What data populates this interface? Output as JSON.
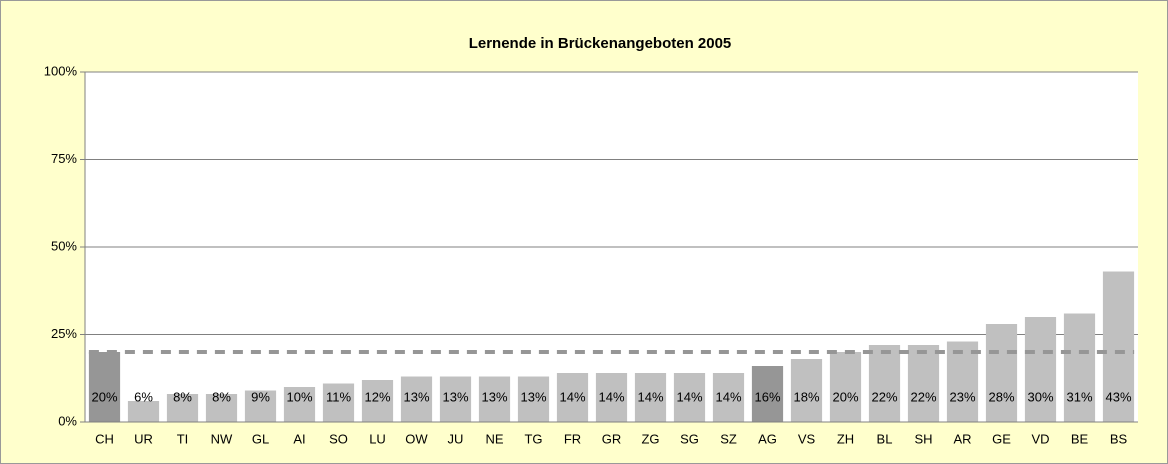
{
  "chart_data": {
    "type": "bar",
    "title": "Lernende in Brückenangeboten 2005",
    "categories": [
      "CH",
      "UR",
      "TI",
      "NW",
      "GL",
      "AI",
      "SO",
      "LU",
      "OW",
      "JU",
      "NE",
      "TG",
      "FR",
      "GR",
      "ZG",
      "SG",
      "SZ",
      "AG",
      "VS",
      "ZH",
      "BL",
      "SH",
      "AR",
      "GE",
      "VD",
      "BE",
      "BS"
    ],
    "values": [
      20,
      6,
      8,
      8,
      9,
      10,
      11,
      12,
      13,
      13,
      13,
      13,
      14,
      14,
      14,
      14,
      14,
      16,
      18,
      20,
      22,
      22,
      23,
      28,
      30,
      31,
      43
    ],
    "value_labels": [
      "20%",
      "6%",
      "8%",
      "8%",
      "9%",
      "10%",
      "11%",
      "12%",
      "13%",
      "13%",
      "13%",
      "13%",
      "14%",
      "14%",
      "14%",
      "14%",
      "14%",
      "16%",
      "18%",
      "20%",
      "22%",
      "22%",
      "23%",
      "28%",
      "30%",
      "31%",
      "43%"
    ],
    "colors": [
      "#969696",
      "#c0c0c0",
      "#c0c0c0",
      "#c0c0c0",
      "#c0c0c0",
      "#c0c0c0",
      "#c0c0c0",
      "#c0c0c0",
      "#c0c0c0",
      "#c0c0c0",
      "#c0c0c0",
      "#c0c0c0",
      "#c0c0c0",
      "#c0c0c0",
      "#c0c0c0",
      "#c0c0c0",
      "#c0c0c0",
      "#969696",
      "#c0c0c0",
      "#c0c0c0",
      "#c0c0c0",
      "#c0c0c0",
      "#c0c0c0",
      "#c0c0c0",
      "#c0c0c0",
      "#c0c0c0",
      "#c0c0c0"
    ],
    "reference_line": {
      "value": 20,
      "color": "#969696"
    },
    "ylim": [
      0,
      100
    ],
    "yticks": [
      {
        "value": 0,
        "label": "0%"
      },
      {
        "value": 25,
        "label": "25%"
      },
      {
        "value": 50,
        "label": "50%"
      },
      {
        "value": 75,
        "label": "75%"
      },
      {
        "value": 100,
        "label": "100%"
      }
    ],
    "grid": true
  }
}
